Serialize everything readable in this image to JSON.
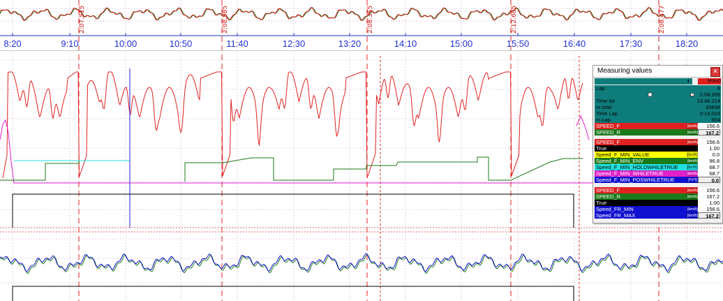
{
  "time_axis": {
    "ticks": [
      "8:20",
      "9:10",
      "10:00",
      "10:50",
      "11:40",
      "12:30",
      "13:20",
      "14:10",
      "15:00",
      "15:50",
      "16:40",
      "17:30",
      "18:20"
    ],
    "color": "#1f2fd0"
  },
  "lap_markers": [
    "2:07.515",
    "2:08.985",
    "2:08.355",
    "2:12.685",
    "2:08.477"
  ],
  "colors": {
    "speed_f": "#e02020",
    "speed_r": "#1a7a1a",
    "min_holdwhiletrue": "#20e0e0",
    "min_whiletrue": "#e020c8",
    "cursor": "#2020d0",
    "lap_line": "#e02020",
    "panel_teal": "#0f7c7c"
  },
  "measuring_values": {
    "title": "Measuring values",
    "close_icon": "close-icon",
    "header_icon": "double-chevron-down-icon",
    "header_tag": "Moto0",
    "lap": {
      "rows": [
        {
          "name": "Lap",
          "value": "6"
        },
        {
          "name": "",
          "value": "2:08.355"
        },
        {
          "name": "Time tot",
          "value": "13:48.214"
        },
        {
          "name": "m total",
          "value": "33838"
        },
        {
          "name": "Time Lap",
          "value": "0:14.016"
        },
        {
          "name": "m Lap",
          "value": "654"
        }
      ]
    },
    "group1": [
      {
        "name": "SPEED_F",
        "unit": "[km/h]",
        "value": "156.6",
        "bg": "#e02020",
        "fg": "#ffffff",
        "boxed": false
      },
      {
        "name": "SPEED_R",
        "unit": "[km/h]",
        "value": "167.2",
        "bg": "#1a7a1a",
        "fg": "#ffffff",
        "boxed": true
      }
    ],
    "group2": [
      {
        "name": "SPEED_F",
        "unit": "[km/h]",
        "value": "156.6",
        "bg": "#e02020",
        "fg": "#ffffff",
        "boxed": false
      },
      {
        "name": "True",
        "unit": "",
        "value": "1.00",
        "bg": "#000000",
        "fg": "#ffffff",
        "boxed": false
      },
      {
        "name": "Speed_F_MIN_VALUE",
        "unit": "[km/h]",
        "value": "0.0",
        "bg": "#ffff00",
        "fg": "#000000",
        "boxed": false
      },
      {
        "name": "Speed_F_MIN_ENV",
        "unit": "[km/h]",
        "value": "96.8",
        "bg": "#1a7a1a",
        "fg": "#ffffff",
        "boxed": false
      },
      {
        "name": "Speed_F_MIN_HOLDWHILETRUE",
        "unit": "[km/h]",
        "value": "68.7",
        "bg": "#20e0e0",
        "fg": "#000000",
        "boxed": false
      },
      {
        "name": "Speed_F_MIN_WHILETRUE",
        "unit": "[km/h]",
        "value": "68.7",
        "bg": "#e020c8",
        "fg": "#ffffff",
        "boxed": false
      },
      {
        "name": "Speed_F_MIN_POSWHILETRUE",
        "unit": "[l*s*l]",
        "value": "0.0",
        "bg": "#1010d0",
        "fg": "#ffffff",
        "boxed": true
      }
    ],
    "group3": [
      {
        "name": "SPEED_F",
        "unit": "[km/h]",
        "value": "156.6",
        "bg": "#e02020",
        "fg": "#ffffff",
        "boxed": false
      },
      {
        "name": "SPEED_R",
        "unit": "[km/h]",
        "value": "167.2",
        "bg": "#1a7a1a",
        "fg": "#ffffff",
        "boxed": false
      },
      {
        "name": "True",
        "unit": "",
        "value": "1.00",
        "bg": "#000000",
        "fg": "#ffffff",
        "boxed": false
      },
      {
        "name": "Speed_FR_MIN",
        "unit": "[km/h]",
        "value": "156.6",
        "bg": "#1010d0",
        "fg": "#ffffff",
        "boxed": false
      },
      {
        "name": "Speed_FR_MAX",
        "unit": "[km/h]",
        "value": "167.2",
        "bg": "#1010d0",
        "fg": "#ffffff",
        "boxed": true
      }
    ]
  }
}
